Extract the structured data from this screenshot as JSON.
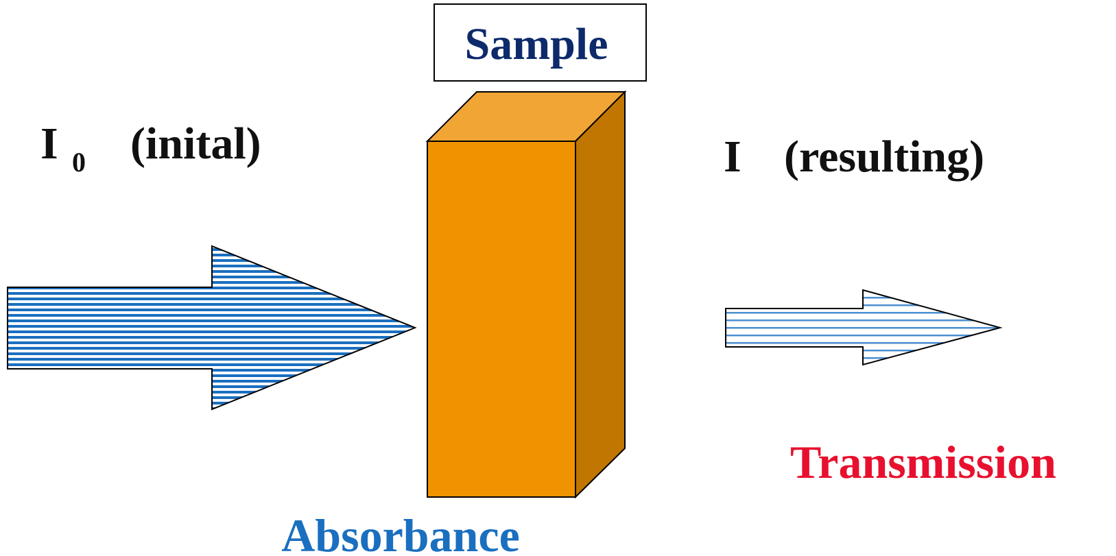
{
  "sample_label": "Sample",
  "incident": {
    "symbol": "I",
    "subscript": "0",
    "note": "(inital)"
  },
  "transmitted": {
    "symbol": "I",
    "note": "(resulting)"
  },
  "transmission_label": "Transmission",
  "absorbance_label": "Absorbance"
}
